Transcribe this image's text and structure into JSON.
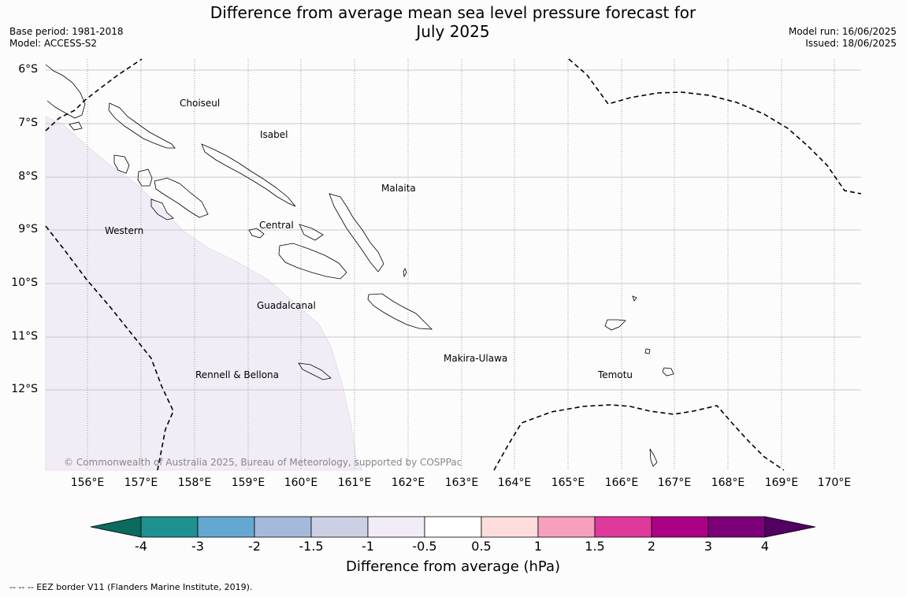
{
  "title_line1": "Difference from average mean sea level pressure forecast for",
  "title_line2": "July 2025",
  "base_period": "Base period: 1981-2018",
  "model": "Model: ACCESS-S2",
  "model_run": "Model run: 16/06/2025",
  "issued": "Issued: 18/06/2025",
  "lat_labels": [
    "6°S",
    "7°S",
    "8°S",
    "9°S",
    "10°S",
    "11°S",
    "12°S"
  ],
  "lon_labels": [
    "156°E",
    "157°E",
    "158°E",
    "159°E",
    "160°E",
    "161°E",
    "162°E",
    "163°E",
    "164°E",
    "165°E",
    "166°E",
    "167°E",
    "168°E",
    "169°E",
    "170°E"
  ],
  "regions": [
    "Choiseul",
    "Isabel",
    "Malaita",
    "Western",
    "Central",
    "Guadalcanal",
    "Makira-Ulawa",
    "Rennell & Bellona",
    "Temotu"
  ],
  "copyright": "© Commonwealth of Australia 2025, Bureau of Meteorology, supported by COSPPac",
  "colorbar": {
    "title": "Difference from average (hPa)",
    "tick_labels": [
      "-4",
      "-3",
      "-2",
      "-1.5",
      "-1",
      "-0.5",
      "0.5",
      "1",
      "1.5",
      "2",
      "3",
      "4"
    ],
    "colors": [
      "#0a6b5e",
      "#1f9090",
      "#64a8d2",
      "#a5bada",
      "#cdd0e4",
      "#f2ecf6",
      "#ffffff",
      "#fddcdc",
      "#f7a0be",
      "#e0399c",
      "#ac0087",
      "#7c0078",
      "#520062"
    ]
  },
  "footnote": "--  --  -- EEZ border V11 (Flanders Marine Institute, 2019).",
  "map_data": {
    "lon_range": [
      155.2,
      170.5
    ],
    "lat_range": [
      -13.5,
      -5.8
    ],
    "shaded_anomaly_class": "-1 to -0.5",
    "shaded_color": "#f2ecf6"
  }
}
